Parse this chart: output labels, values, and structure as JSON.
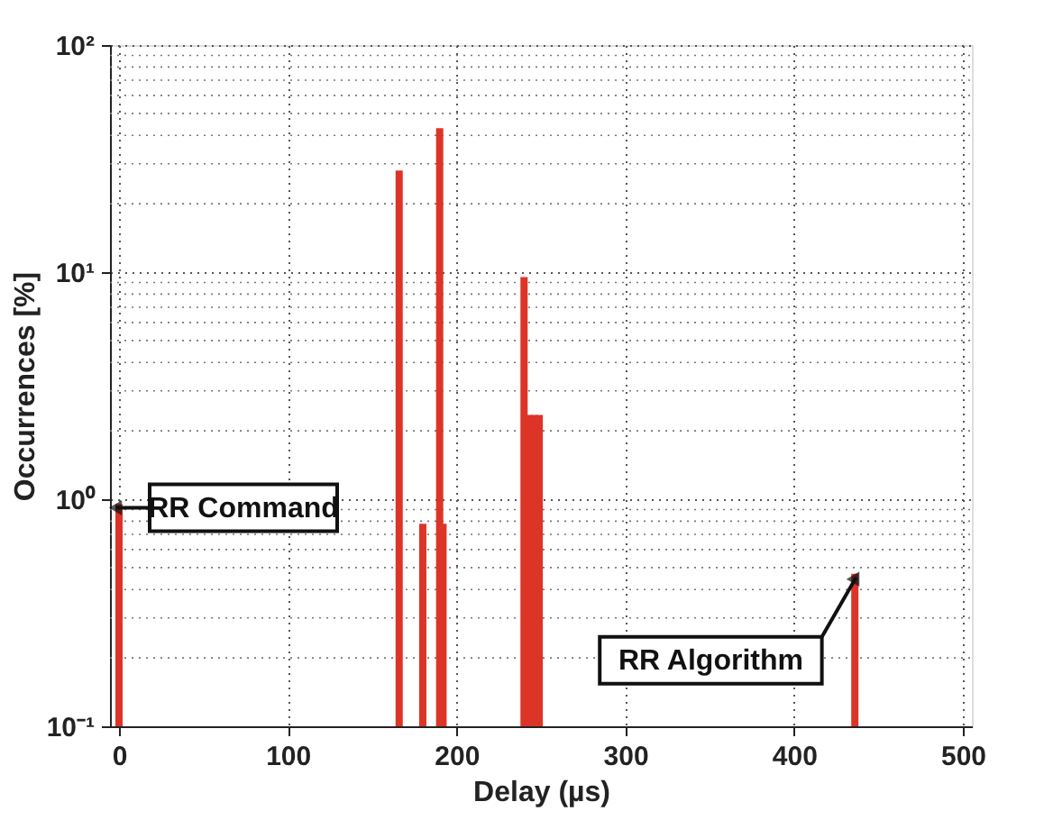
{
  "chart_data": {
    "type": "bar",
    "xlabel": "Delay (µs)",
    "ylabel": "Occurrences [%]",
    "x": [
      0,
      166,
      180,
      190,
      192,
      240,
      243,
      246,
      249,
      436
    ],
    "series": [
      {
        "color": "#dc3427",
        "values": [
          0.95,
          28,
          0.78,
          43,
          0.78,
          9.5,
          2.35,
          2.35,
          2.35,
          0.47
        ]
      }
    ],
    "log": "y",
    "xlim": [
      0,
      500
    ],
    "xticks": [
      0,
      100,
      200,
      300,
      400,
      500
    ],
    "ylim": [
      0.1,
      100
    ],
    "yticks": [
      {
        "value": 0.1,
        "label": "10⁻¹"
      },
      {
        "value": 1,
        "label": "10⁰"
      },
      {
        "value": 10,
        "label": "10¹"
      },
      {
        "value": 100,
        "label": "10²"
      }
    ],
    "grid": true,
    "annotations": [
      {
        "text": "RR Command",
        "x": 0,
        "y": 0.95
      },
      {
        "text": "RR Algorithm",
        "x": 436,
        "y": 0.47
      }
    ]
  }
}
